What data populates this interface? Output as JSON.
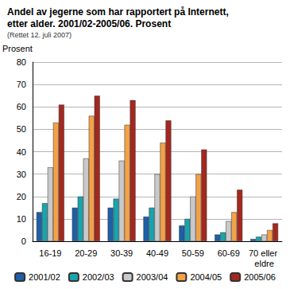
{
  "chart_data": {
    "type": "bar",
    "title": "Andel av jegerne som har rapportert på Internett, etter alder. 2001/02-2005/06. Prosent",
    "subtitle": "(Rettet 12. juli 2007)",
    "y_label": "Prosent",
    "categories": [
      "16-19",
      "20-29",
      "30-39",
      "40-49",
      "50-59",
      "60-69",
      "70 eller eldre"
    ],
    "series": [
      {
        "name": "2001/02",
        "color": "#1f5fa6",
        "values": [
          13,
          15,
          15,
          11,
          7,
          3,
          1
        ]
      },
      {
        "name": "2002/03",
        "color": "#1aa3ad",
        "values": [
          17,
          20,
          19,
          15,
          10,
          4,
          2
        ]
      },
      {
        "name": "2003/04",
        "color": "#c9c9c9",
        "values": [
          33,
          37,
          36,
          30,
          20,
          9,
          3
        ]
      },
      {
        "name": "2004/05",
        "color": "#f3a248",
        "values": [
          53,
          56,
          52,
          44,
          30,
          13,
          5
        ]
      },
      {
        "name": "2005/06",
        "color": "#a3281f",
        "values": [
          61,
          65,
          63,
          54,
          41,
          23,
          8
        ]
      }
    ],
    "ylim": [
      0,
      80
    ],
    "yticks": [
      0,
      10,
      20,
      30,
      40,
      50,
      60,
      70,
      80
    ],
    "grid": true,
    "legend": "bottom"
  }
}
